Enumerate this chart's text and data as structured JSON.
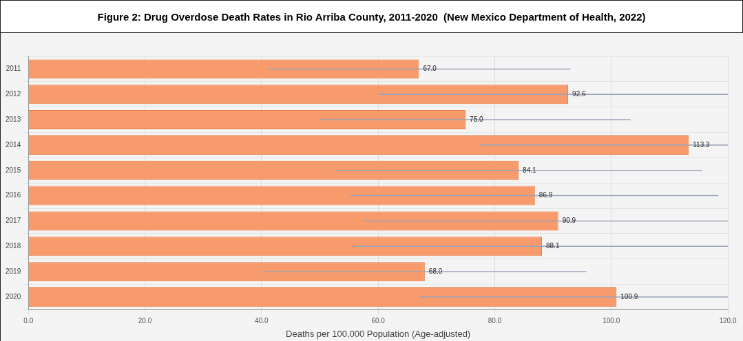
{
  "chart_data": {
    "type": "bar",
    "orientation": "horizontal",
    "title": "Figure 2: Drug Overdose Death Rates in Rio Arriba County, 2011-2020  (New Mexico Department of Health, 2022)",
    "xlabel": "Deaths per 100,000 Population (Age-adjusted)",
    "categories": [
      "2011",
      "2012",
      "2013",
      "2014",
      "2015",
      "2016",
      "2017",
      "2018",
      "2019",
      "2020"
    ],
    "values": [
      67.0,
      92.6,
      75.0,
      113.3,
      84.1,
      86.9,
      90.9,
      88.1,
      68.0,
      100.9
    ],
    "errors": [
      [
        41.1,
        93.0
      ],
      [
        60.0,
        120
      ],
      [
        49.8,
        103.3
      ],
      [
        77.4,
        120
      ],
      [
        52.5,
        115.6
      ],
      [
        55.2,
        118.4
      ],
      [
        57.6,
        120
      ],
      [
        55.7,
        120
      ],
      [
        40.2,
        95.7
      ],
      [
        67.2,
        120
      ]
    ],
    "value_labels": [
      "67.0",
      "92.6",
      "75.0",
      "113.3",
      "84.1",
      "86.9",
      "90.9",
      "88.1",
      "68.0",
      "100.9"
    ],
    "color": "#f79a6c",
    "grid": true,
    "legend": false,
    "xlim": [
      0,
      120
    ],
    "xticks": [
      {
        "value": 0,
        "label": "0.0"
      },
      {
        "value": 20,
        "label": "20.0"
      },
      {
        "value": 40,
        "label": "40.0"
      },
      {
        "value": 60,
        "label": "60.0"
      },
      {
        "value": 80,
        "label": "80.0"
      },
      {
        "value": 100,
        "label": "100.0"
      },
      {
        "value": 120,
        "label": "120.0"
      }
    ]
  }
}
